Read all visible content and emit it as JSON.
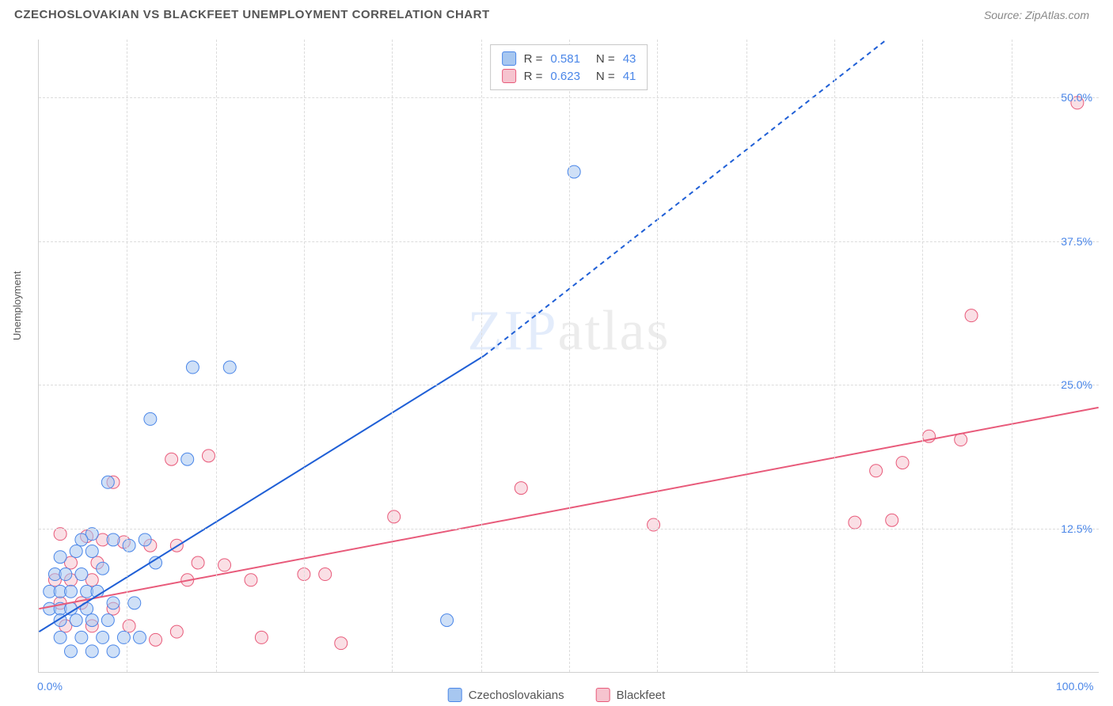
{
  "header": {
    "title": "CZECHOSLOVAKIAN VS BLACKFEET UNEMPLOYMENT CORRELATION CHART",
    "source_label": "Source: ZipAtlas.com"
  },
  "chart": {
    "type": "scatter",
    "ylabel": "Unemployment",
    "watermark": "ZIPatlas",
    "xlim": [
      0,
      100
    ],
    "ylim": [
      0,
      55
    ],
    "xtick_labels": [
      "0.0%",
      "100.0%"
    ],
    "xtick_positions": [
      0,
      100
    ],
    "ytick_labels": [
      "12.5%",
      "25.0%",
      "37.5%",
      "50.0%"
    ],
    "ytick_positions": [
      12.5,
      25.0,
      37.5,
      50.0
    ],
    "x_minor_grid": [
      8.3,
      16.7,
      25,
      33.3,
      41.7,
      50,
      58.3,
      66.7,
      75,
      83.3,
      91.7
    ],
    "background_color": "#ffffff",
    "grid_color": "#dcdcdc",
    "axis_color": "#d0d0d0",
    "title_fontsize": 15,
    "label_fontsize": 13,
    "tick_fontsize": 14,
    "tick_color": "#4a86e8",
    "marker_radius": 8,
    "marker_opacity": 0.55,
    "line_width": 2,
    "series": {
      "czech": {
        "label": "Czechoslovakians",
        "fill_color": "#a7c7f0",
        "stroke_color": "#4a86e8",
        "line_color": "#1f5fd6",
        "R": "0.581",
        "N": "43",
        "regression_solid": {
          "x1": 0,
          "y1": 3.5,
          "x2": 42,
          "y2": 27.5
        },
        "regression_dashed": {
          "x1": 42,
          "y1": 27.5,
          "x2": 80,
          "y2": 55
        },
        "points": [
          [
            50.5,
            43.5
          ],
          [
            14.5,
            26.5
          ],
          [
            18,
            26.5
          ],
          [
            10.5,
            22
          ],
          [
            14,
            18.5
          ],
          [
            6.5,
            16.5
          ],
          [
            5,
            12
          ],
          [
            4,
            11.5
          ],
          [
            7,
            11.5
          ],
          [
            10,
            11.5
          ],
          [
            2,
            10
          ],
          [
            3.5,
            10.5
          ],
          [
            5,
            10.5
          ],
          [
            8.5,
            11
          ],
          [
            1.5,
            8.5
          ],
          [
            2.5,
            8.5
          ],
          [
            4,
            8.5
          ],
          [
            6,
            9
          ],
          [
            11,
            9.5
          ],
          [
            1,
            7
          ],
          [
            2,
            7
          ],
          [
            3,
            7
          ],
          [
            4.5,
            7
          ],
          [
            5.5,
            7
          ],
          [
            1,
            5.5
          ],
          [
            2,
            5.5
          ],
          [
            3,
            5.5
          ],
          [
            4.5,
            5.5
          ],
          [
            7,
            6
          ],
          [
            9,
            6
          ],
          [
            2,
            4.5
          ],
          [
            3.5,
            4.5
          ],
          [
            5,
            4.5
          ],
          [
            6.5,
            4.5
          ],
          [
            38.5,
            4.5
          ],
          [
            2,
            3
          ],
          [
            4,
            3
          ],
          [
            6,
            3
          ],
          [
            8,
            3
          ],
          [
            9.5,
            3
          ],
          [
            3,
            1.8
          ],
          [
            5,
            1.8
          ],
          [
            7,
            1.8
          ]
        ]
      },
      "blackfeet": {
        "label": "Blackfeet",
        "fill_color": "#f6c4cf",
        "stroke_color": "#e85a7a",
        "line_color": "#e85a7a",
        "R": "0.623",
        "N": "41",
        "regression_solid": {
          "x1": 0,
          "y1": 5.5,
          "x2": 100,
          "y2": 23
        },
        "points": [
          [
            98,
            49.5
          ],
          [
            88,
            31
          ],
          [
            84,
            20.5
          ],
          [
            87,
            20.2
          ],
          [
            79,
            17.5
          ],
          [
            81.5,
            18.2
          ],
          [
            12.5,
            18.5
          ],
          [
            16,
            18.8
          ],
          [
            7,
            16.5
          ],
          [
            45.5,
            16
          ],
          [
            77,
            13
          ],
          [
            80.5,
            13.2
          ],
          [
            58,
            12.8
          ],
          [
            33.5,
            13.5
          ],
          [
            2,
            12
          ],
          [
            4.5,
            11.8
          ],
          [
            6,
            11.5
          ],
          [
            8,
            11.3
          ],
          [
            10.5,
            11
          ],
          [
            13,
            11
          ],
          [
            3,
            9.5
          ],
          [
            5.5,
            9.5
          ],
          [
            15,
            9.5
          ],
          [
            17.5,
            9.3
          ],
          [
            1.5,
            8
          ],
          [
            3,
            8
          ],
          [
            5,
            8
          ],
          [
            14,
            8
          ],
          [
            20,
            8
          ],
          [
            25,
            8.5
          ],
          [
            27,
            8.5
          ],
          [
            2,
            6
          ],
          [
            4,
            6
          ],
          [
            7,
            5.5
          ],
          [
            2.5,
            4
          ],
          [
            5,
            4
          ],
          [
            8.5,
            4
          ],
          [
            11,
            2.8
          ],
          [
            13,
            3.5
          ],
          [
            21,
            3
          ],
          [
            28.5,
            2.5
          ]
        ]
      }
    }
  }
}
